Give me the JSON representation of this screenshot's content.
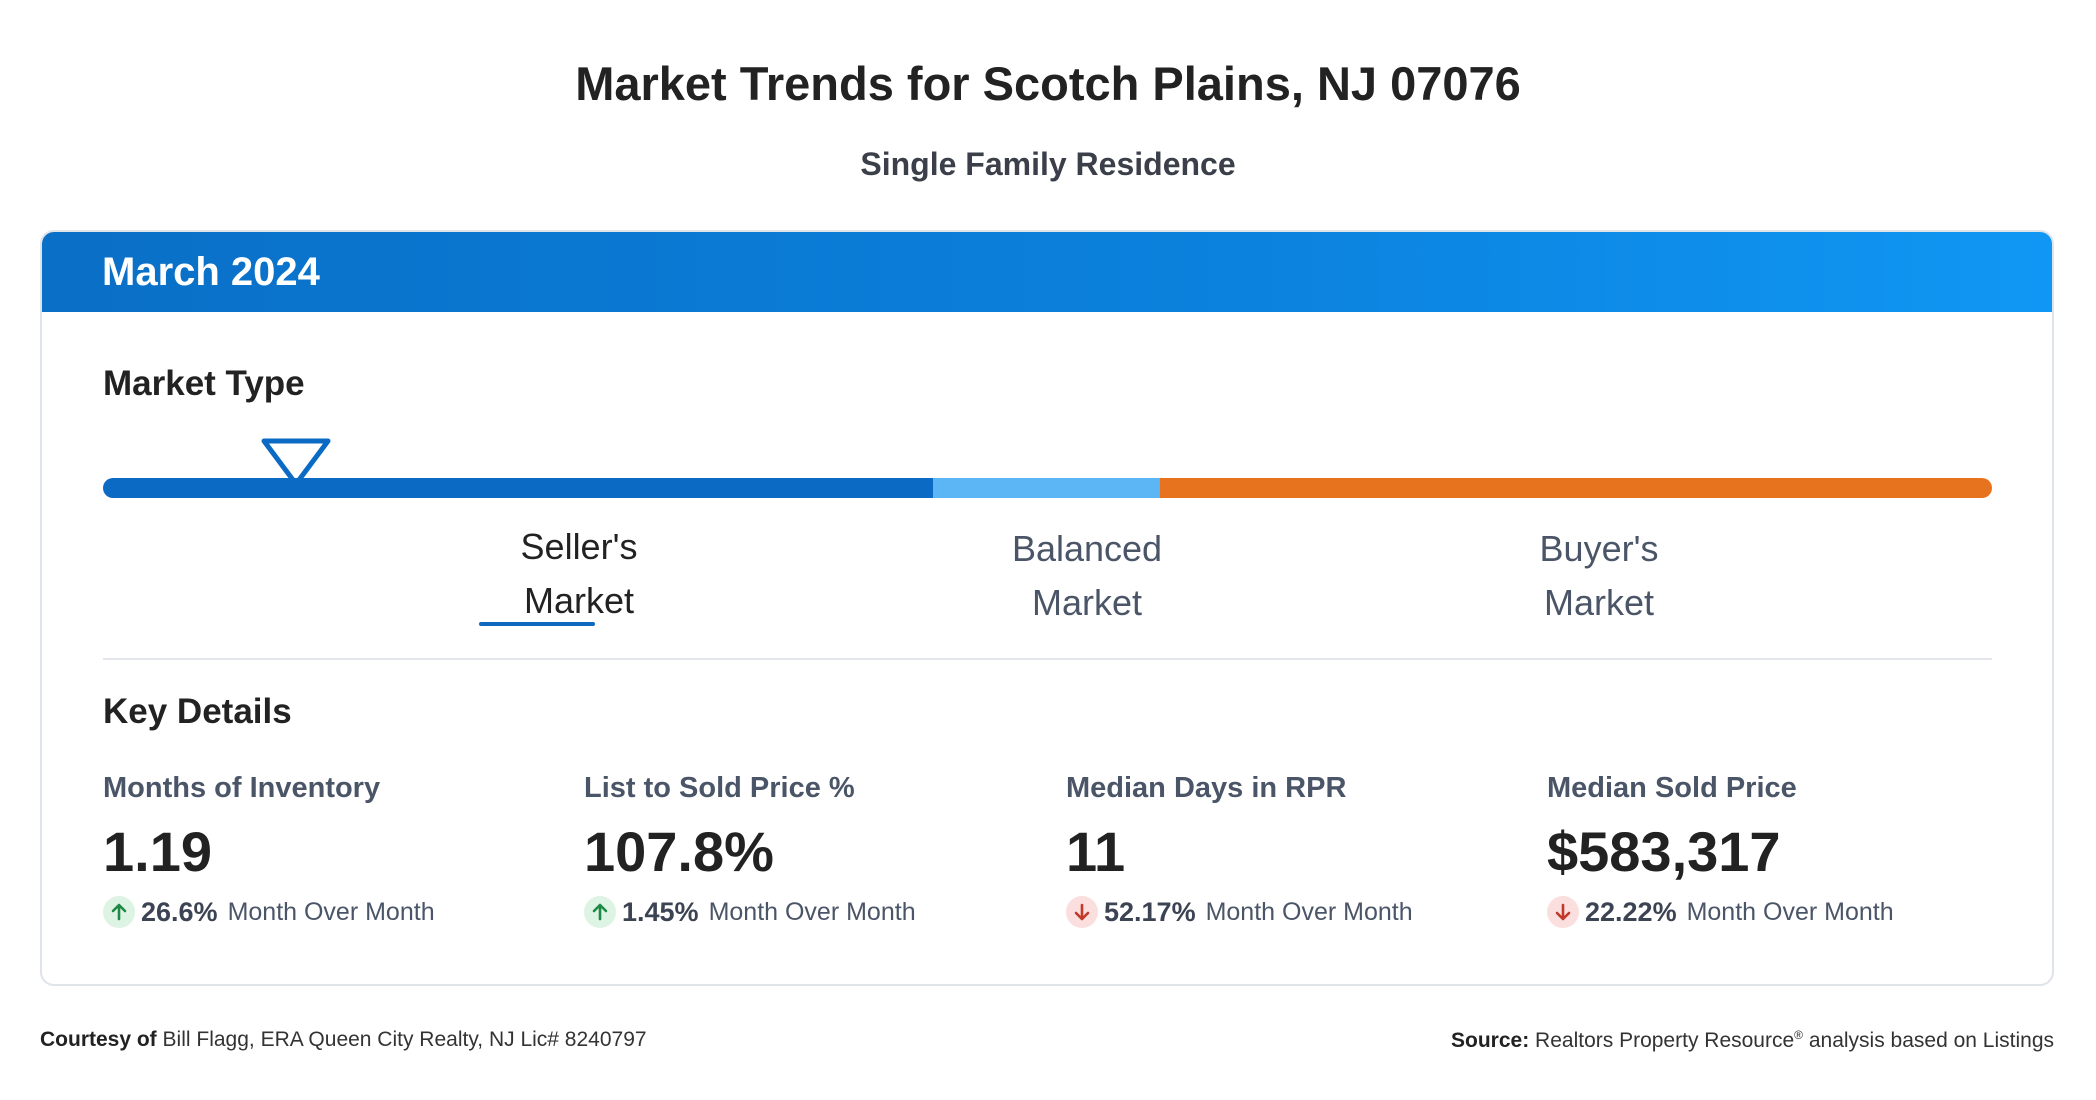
{
  "header": {
    "title": "Market Trends for Scotch Plains, NJ 07076",
    "subtitle": "Single Family Residence"
  },
  "card": {
    "period": "March 2024",
    "market_type": {
      "heading": "Market Type",
      "indicator_fraction": 0.1,
      "colors": {
        "seller": "#0b6bc4",
        "balanced": "#5cb6f5",
        "buyer": "#e8731f"
      },
      "labels": {
        "seller": [
          "Seller's",
          "Market"
        ],
        "balanced": [
          "Balanced",
          "Market"
        ],
        "buyer": [
          "Buyer's",
          "Market"
        ]
      },
      "active": "seller"
    },
    "key_details": {
      "heading": "Key Details",
      "stats": [
        {
          "label": "Months of Inventory",
          "value": "1.19",
          "direction": "up",
          "change": "26.6%",
          "change_text": "Month Over Month"
        },
        {
          "label": "List to Sold Price %",
          "value": "107.8%",
          "direction": "up",
          "change": "1.45%",
          "change_text": "Month Over Month"
        },
        {
          "label": "Median Days in RPR",
          "value": "11",
          "direction": "down",
          "change": "52.17%",
          "change_text": "Month Over Month"
        },
        {
          "label": "Median Sold Price",
          "value": "$583,317",
          "direction": "down",
          "change": "22.22%",
          "change_text": "Month Over Month"
        }
      ]
    }
  },
  "footer": {
    "courtesy_label": "Courtesy of",
    "courtesy_text": "Bill Flagg, ERA Queen City Realty, NJ Lic# 8240797",
    "source_label": "Source:",
    "source_text": "Realtors Property Resource",
    "source_sup": "®",
    "source_suffix": "analysis based on Listings"
  },
  "colors": {
    "up_arrow": "#1e8a45",
    "down_arrow": "#c0392b"
  }
}
